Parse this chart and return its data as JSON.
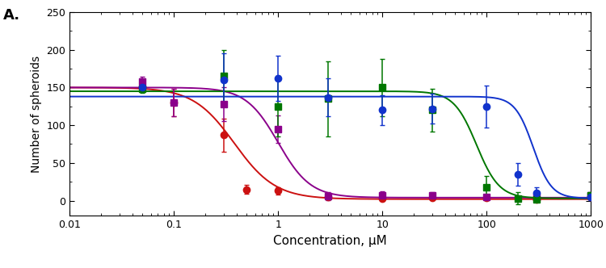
{
  "panel_label": "A.",
  "xlabel": "Concentration, μM",
  "ylabel": "Number of spheroids",
  "xmin": 0.01,
  "xmax": 1000,
  "ymin": -20,
  "ymax": 250,
  "yticks": [
    0,
    50,
    100,
    150,
    200,
    250
  ],
  "xticks": [
    0.01,
    0.1,
    1,
    10,
    100,
    1000
  ],
  "xtick_labels": [
    "0.01",
    "0.1",
    "1",
    "10",
    "100",
    "1000"
  ],
  "background_color": "#ffffff",
  "series": [
    {
      "name": "red_circles",
      "color": "#cc1111",
      "marker": "o",
      "top": 150,
      "bottom": 2,
      "ic50": 0.38,
      "hill": 2.2,
      "data_x": [
        0.05,
        0.1,
        0.3,
        0.5,
        1.0,
        3.0,
        10.0,
        30.0,
        100.0,
        300.0,
        1000.0
      ],
      "data_y": [
        152,
        130,
        87,
        15,
        13,
        5,
        3,
        4,
        4,
        2,
        5
      ],
      "data_yerr": [
        7,
        18,
        22,
        6,
        5,
        3,
        2,
        2,
        2,
        1,
        2
      ]
    },
    {
      "name": "purple_squares",
      "color": "#8b008b",
      "marker": "s",
      "top": 150,
      "bottom": 4,
      "ic50": 1.0,
      "hill": 2.8,
      "data_x": [
        0.05,
        0.1,
        0.3,
        1.0,
        3.0,
        10.0,
        30.0,
        100.0,
        300.0,
        1000.0
      ],
      "data_y": [
        158,
        130,
        128,
        95,
        6,
        7,
        7,
        5,
        5,
        7
      ],
      "data_yerr": [
        6,
        18,
        22,
        18,
        5,
        5,
        4,
        3,
        3,
        3
      ]
    },
    {
      "name": "green_squares",
      "color": "#007700",
      "marker": "s",
      "top": 145,
      "bottom": 3,
      "ic50": 80,
      "hill": 4.0,
      "data_x": [
        0.05,
        0.3,
        1.0,
        3.0,
        10.0,
        30.0,
        100.0,
        200.0,
        300.0,
        1000.0
      ],
      "data_y": [
        148,
        165,
        125,
        135,
        150,
        120,
        18,
        3,
        2,
        7
      ],
      "data_yerr": [
        5,
        35,
        40,
        50,
        38,
        28,
        15,
        8,
        4,
        4
      ]
    },
    {
      "name": "blue_circles",
      "color": "#1133cc",
      "marker": "o",
      "top": 138,
      "bottom": 3,
      "ic50": 280,
      "hill": 5.0,
      "data_x": [
        0.05,
        0.3,
        1.0,
        3.0,
        10.0,
        30.0,
        100.0,
        200.0,
        300.0,
        1000.0
      ],
      "data_y": [
        150,
        160,
        162,
        137,
        120,
        122,
        125,
        35,
        10,
        5
      ],
      "data_yerr": [
        5,
        35,
        30,
        25,
        20,
        20,
        28,
        15,
        8,
        4
      ]
    }
  ]
}
